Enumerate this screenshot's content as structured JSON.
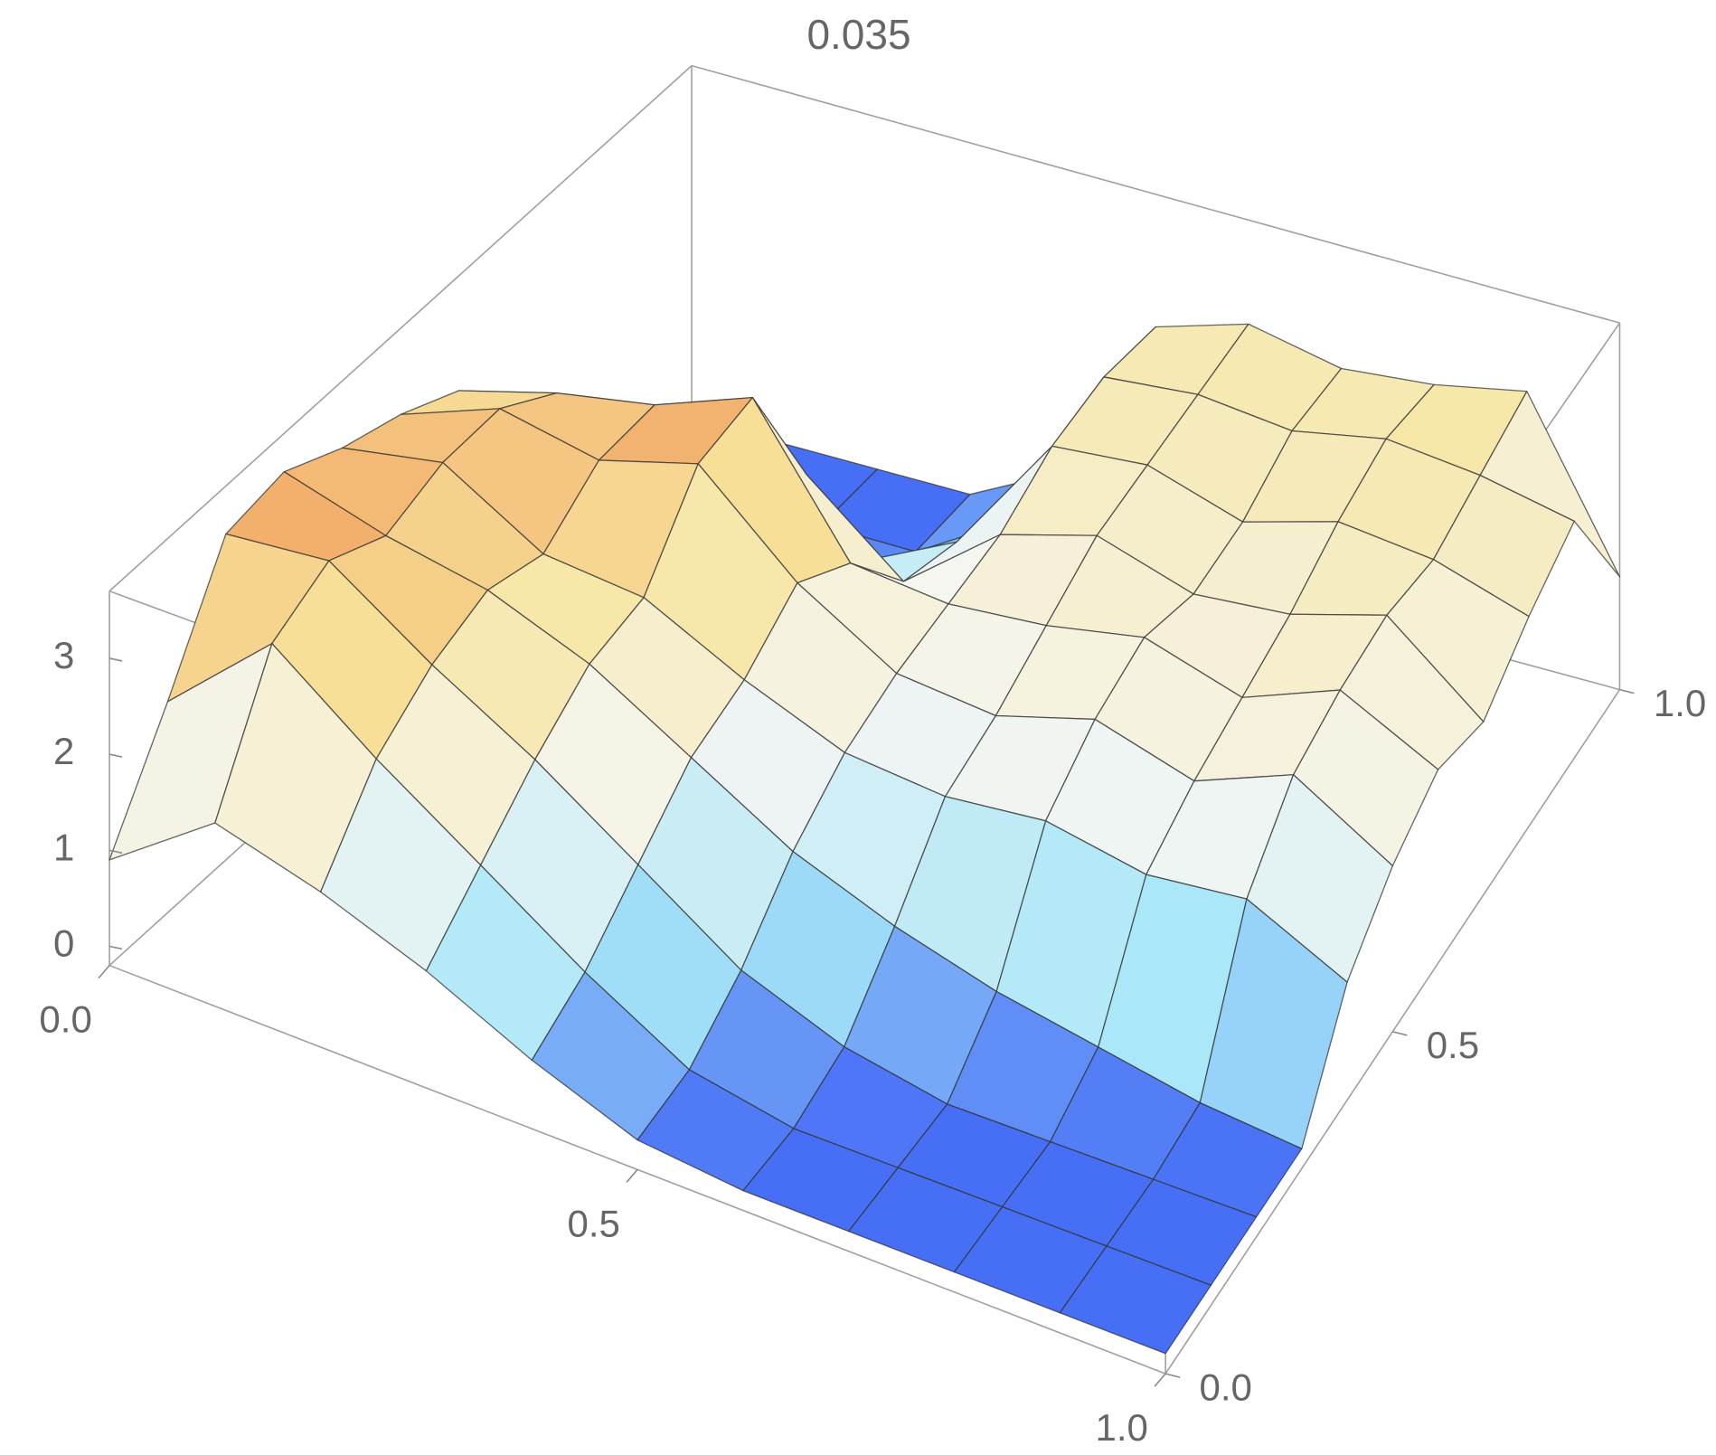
{
  "chart_data": {
    "type": "surface",
    "title": "0.035",
    "x": [
      0,
      0.1,
      0.2,
      0.3,
      0.4,
      0.5,
      0.6,
      0.7,
      0.8,
      0.9,
      1
    ],
    "y": [
      0,
      0.1,
      0.2,
      0.3,
      0.4,
      0.5,
      0.6,
      0.7,
      0.8,
      0.9,
      1
    ],
    "z": [
      [
        0.9,
        1.7,
        1.4,
        1.0,
        0.5,
        0.1,
        0,
        0,
        0,
        0,
        0
      ],
      [
        2.0,
        3.0,
        2.2,
        1.5,
        0.8,
        0.2,
        0,
        0,
        0,
        0,
        0
      ],
      [
        3.2,
        3.3,
        2.6,
        2.0,
        1.3,
        0.6,
        0.2,
        0,
        0,
        0,
        0
      ],
      [
        3.3,
        3.0,
        2.8,
        2.4,
        1.8,
        1.2,
        0.8,
        0.5,
        0.3,
        0.1,
        0
      ],
      [
        3.0,
        3.2,
        2.6,
        2.5,
        2.0,
        1.6,
        1.5,
        1.6,
        1.4,
        1.5,
        1.0
      ],
      [
        2.8,
        3.2,
        3.0,
        3.3,
        2.4,
        1.8,
        1.7,
        2.0,
        1.7,
        2.1,
        1.5
      ],
      [
        2.5,
        2.8,
        3.0,
        3.4,
        2.0,
        1.9,
        2.0,
        2.2,
        1.9,
        2.3,
        1.8
      ],
      [
        1.5,
        1.8,
        2.2,
        2.0,
        1.2,
        2.0,
        2.3,
        2.0,
        2.1,
        2.4,
        1.6
      ],
      [
        0.5,
        0.2,
        0.1,
        0.5,
        1.0,
        2.3,
        2.4,
        2.1,
        2.4,
        2.3,
        2.0
      ],
      [
        0,
        0,
        0,
        0,
        0.6,
        2.4,
        2.5,
        2.4,
        2.6,
        2.5,
        2.3
      ],
      [
        0,
        0,
        0,
        0,
        0.5,
        2.3,
        2.6,
        2.4,
        2.5,
        2.7,
        1.0
      ]
    ],
    "xlim": [
      0,
      1
    ],
    "xticks": [
      {
        "value": 0,
        "label": "0.0"
      },
      0.5,
      {
        "value": 1,
        "label": "1.0"
      }
    ],
    "ylim": [
      0,
      1
    ],
    "yticks": [
      {
        "value": 0,
        "label": "0.0"
      },
      0.5,
      {
        "value": 1,
        "label": "1.0"
      }
    ],
    "zlim": [
      -0.2,
      3.7
    ],
    "zticks": [
      0,
      1,
      2,
      3
    ],
    "colors": [
      "#2f50f5",
      "#a6e6f8",
      "#f5f6f2",
      "#f7e49c",
      "#ef7a3c"
    ],
    "mesh": true
  }
}
